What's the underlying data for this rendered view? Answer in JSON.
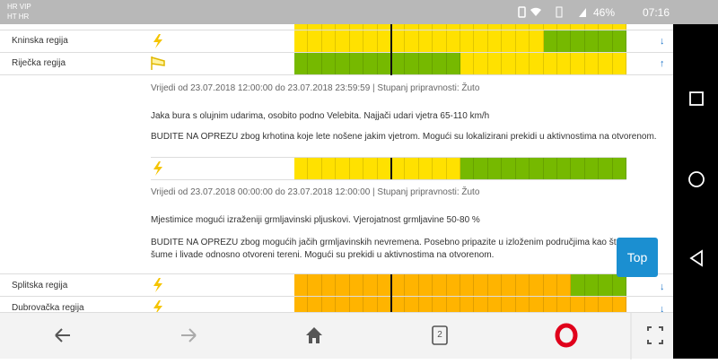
{
  "status_bar": {
    "carrier_1": "HR VIP",
    "carrier_2": "HT HR",
    "battery": "46%",
    "time": "07:16"
  },
  "regions": [
    "Kninska regija",
    "Riječka regija",
    "Splitska regija",
    "Dubrovačka regija"
  ],
  "warnings": [
    {
      "validity": "Vrijedi od 23.07.2018 12:00:00 do 23.07.2018 23:59:59 | Stupanj pripravnosti: Žuto",
      "description": "Jaka bura s olujnim udarima, osobito podno Velebita. Najjači udari vjetra 65-110 km/h",
      "advice": [
        "BUDITE NA OPREZU zbog krhotina koje lete nošene jakim vjetrom. Mogući su lokalizirani prekidi u aktivnostima na otvorenom."
      ]
    },
    {
      "validity": "Vrijedi od 23.07.2018 00:00:00 do 23.07.2018 12:00:00 | Stupanj pripravnosti: Žuto",
      "description": "Mjestimice mogući izraženiji grmljavinski pljuskovi. Vjerojatnost grmljavine 50-80 %",
      "advice": [
        "BUDITE NA OPREZU zbog mogućih jačih grmljavinskih nevremena. Posebno pripazite u izloženim područjima kao što su planin",
        "šume i livade odnosno otvoreni tereni. Mogući su prekidi u aktivnostima na otvorenom."
      ]
    }
  ],
  "top_button": "Top",
  "tab_count": "2"
}
